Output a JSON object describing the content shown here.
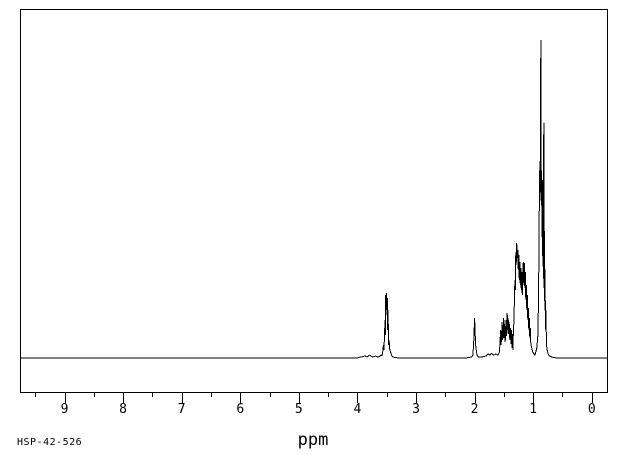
{
  "page": {
    "background": "#ffffff",
    "foreground": "#000000"
  },
  "labels": {
    "sample_id": "HSP-42-526",
    "x_axis_title": "ppm"
  },
  "chart_data": {
    "type": "line",
    "description": "1H NMR spectrum, single black trace on white, box border, no y axis",
    "title": "",
    "xlabel": "ppm",
    "ylabel": "",
    "line_color": "#000000",
    "grid": false,
    "legend": false,
    "x_axis": {
      "unit": "ppm",
      "reversed": true,
      "left_ppm": 9.76,
      "right_ppm": -0.26,
      "major_ticks": [
        9,
        8,
        7,
        6,
        5,
        4,
        3,
        2,
        1,
        0
      ],
      "minor_ticks": [
        9.5,
        8.5,
        7.5,
        6.5,
        5.5,
        4.5,
        3.5,
        2.5,
        1.5,
        0.5
      ]
    },
    "ylim": [
      0,
      110
    ],
    "peaks": [
      {
        "ppm": 3.5,
        "intensity_pct": 20
      },
      {
        "ppm": 2.0,
        "intensity_pct": 13
      },
      {
        "ppm": 1.44,
        "intensity_pct": 14
      },
      {
        "ppm": 1.28,
        "intensity_pct": 36
      },
      {
        "ppm": 1.15,
        "intensity_pct": 30
      },
      {
        "ppm": 0.87,
        "intensity_pct": 100
      },
      {
        "ppm": 0.82,
        "intensity_pct": 74
      }
    ],
    "trace": [
      [
        9.76,
        0
      ],
      [
        5.0,
        0
      ],
      [
        4.0,
        0
      ],
      [
        3.95,
        0.3
      ],
      [
        3.91,
        0.4
      ],
      [
        3.87,
        0.7
      ],
      [
        3.84,
        0.3
      ],
      [
        3.79,
        0.9
      ],
      [
        3.74,
        0.3
      ],
      [
        3.69,
        0.6
      ],
      [
        3.65,
        0.3
      ],
      [
        3.62,
        0.5
      ],
      [
        3.6,
        0.9
      ],
      [
        3.58,
        0.8
      ],
      [
        3.57,
        1.6
      ],
      [
        3.556,
        4.1
      ],
      [
        3.548,
        2.5
      ],
      [
        3.54,
        6.0
      ],
      [
        3.53,
        11.9
      ],
      [
        3.523,
        7.2
      ],
      [
        3.517,
        19.8
      ],
      [
        3.51,
        15.1
      ],
      [
        3.503,
        20.4
      ],
      [
        3.497,
        13.5
      ],
      [
        3.49,
        18.9
      ],
      [
        3.483,
        8.8
      ],
      [
        3.477,
        15.1
      ],
      [
        3.47,
        4.1
      ],
      [
        3.46,
        5.7
      ],
      [
        3.45,
        2.8
      ],
      [
        3.43,
        1.6
      ],
      [
        3.41,
        0.6
      ],
      [
        3.39,
        0.3
      ],
      [
        3.35,
        0.1
      ],
      [
        3.2,
        0
      ],
      [
        2.5,
        0
      ],
      [
        2.15,
        0
      ],
      [
        2.09,
        0.2
      ],
      [
        2.05,
        0.3
      ],
      [
        2.03,
        0.9
      ],
      [
        2.017,
        4.1
      ],
      [
        2.008,
        8.2
      ],
      [
        2.0,
        12.6
      ],
      [
        1.992,
        8.2
      ],
      [
        1.983,
        4.1
      ],
      [
        1.966,
        1.6
      ],
      [
        1.95,
        0.6
      ],
      [
        1.93,
        0.3
      ],
      [
        1.88,
        0.3
      ],
      [
        1.81,
        0.6
      ],
      [
        1.77,
        1.3
      ],
      [
        1.74,
        0.9
      ],
      [
        1.71,
        1.4
      ],
      [
        1.67,
        0.9
      ],
      [
        1.64,
        1.3
      ],
      [
        1.6,
        0.9
      ],
      [
        1.575,
        1.9
      ],
      [
        1.565,
        5.7
      ],
      [
        1.555,
        8.8
      ],
      [
        1.548,
        4.1
      ],
      [
        1.54,
        7.2
      ],
      [
        1.53,
        11.3
      ],
      [
        1.52,
        5.7
      ],
      [
        1.512,
        10.1
      ],
      [
        1.503,
        12.6
      ],
      [
        1.495,
        6.3
      ],
      [
        1.486,
        10.7
      ],
      [
        1.478,
        5.0
      ],
      [
        1.47,
        8.8
      ],
      [
        1.46,
        11.9
      ],
      [
        1.452,
        6.9
      ],
      [
        1.443,
        14.2
      ],
      [
        1.435,
        8.8
      ],
      [
        1.427,
        12.6
      ],
      [
        1.418,
        7.5
      ],
      [
        1.41,
        11.3
      ],
      [
        1.4,
        5.7
      ],
      [
        1.39,
        9.4
      ],
      [
        1.38,
        4.4
      ],
      [
        1.372,
        8.8
      ],
      [
        1.363,
        3.1
      ],
      [
        1.355,
        7.5
      ],
      [
        1.347,
        2.5
      ],
      [
        1.338,
        8.8
      ],
      [
        1.33,
        11.3
      ],
      [
        1.32,
        18.2
      ],
      [
        1.312,
        24.5
      ],
      [
        1.305,
        21.4
      ],
      [
        1.297,
        33.3
      ],
      [
        1.29,
        29.2
      ],
      [
        1.282,
        36.2
      ],
      [
        1.273,
        31.4
      ],
      [
        1.263,
        34.0
      ],
      [
        1.254,
        27.7
      ],
      [
        1.246,
        32.4
      ],
      [
        1.237,
        24.5
      ],
      [
        1.229,
        30.2
      ],
      [
        1.22,
        23.0
      ],
      [
        1.212,
        28.3
      ],
      [
        1.203,
        21.4
      ],
      [
        1.195,
        27.0
      ],
      [
        1.186,
        19.8
      ],
      [
        1.178,
        25.2
      ],
      [
        1.169,
        30.2
      ],
      [
        1.16,
        23.0
      ],
      [
        1.152,
        29.9
      ],
      [
        1.143,
        22.0
      ],
      [
        1.135,
        27.0
      ],
      [
        1.126,
        18.2
      ],
      [
        1.118,
        23.0
      ],
      [
        1.109,
        15.1
      ],
      [
        1.1,
        19.8
      ],
      [
        1.092,
        11.9
      ],
      [
        1.083,
        15.7
      ],
      [
        1.075,
        8.8
      ],
      [
        1.066,
        12.6
      ],
      [
        1.058,
        6.3
      ],
      [
        1.049,
        9.4
      ],
      [
        1.04,
        4.4
      ],
      [
        1.024,
        3.1
      ],
      [
        1.007,
        1.9
      ],
      [
        0.99,
        1.3
      ],
      [
        0.973,
        0.9
      ],
      [
        0.956,
        1.9
      ],
      [
        0.939,
        3.1
      ],
      [
        0.92,
        7.2
      ],
      [
        0.912,
        15
      ],
      [
        0.904,
        28
      ],
      [
        0.898,
        43
      ],
      [
        0.893,
        59
      ],
      [
        0.889,
        50
      ],
      [
        0.885,
        62
      ],
      [
        0.881,
        52
      ],
      [
        0.877,
        60
      ],
      [
        0.873,
        72
      ],
      [
        0.87,
        100
      ],
      [
        0.866,
        58
      ],
      [
        0.862,
        48
      ],
      [
        0.856,
        59
      ],
      [
        0.85,
        38
      ],
      [
        0.845,
        56
      ],
      [
        0.838,
        32
      ],
      [
        0.833,
        50
      ],
      [
        0.827,
        25
      ],
      [
        0.819,
        74
      ],
      [
        0.813,
        22
      ],
      [
        0.808,
        40
      ],
      [
        0.801,
        15
      ],
      [
        0.796,
        28
      ],
      [
        0.791,
        9
      ],
      [
        0.784,
        15
      ],
      [
        0.775,
        6
      ],
      [
        0.767,
        3.1
      ],
      [
        0.75,
        1.6
      ],
      [
        0.733,
        0.9
      ],
      [
        0.716,
        0.6
      ],
      [
        0.68,
        0.3
      ],
      [
        0.648,
        0.1
      ],
      [
        0.5,
        0
      ],
      [
        0.0,
        0
      ],
      [
        -0.26,
        0
      ]
    ]
  }
}
